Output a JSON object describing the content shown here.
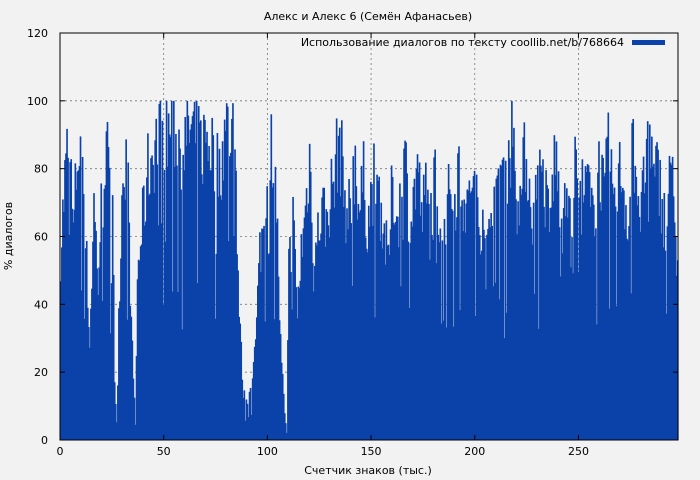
{
  "chart_data": {
    "type": "bar",
    "title": "Алекс и Алекс 6 (Семён Афанасьев)",
    "xlabel": "Счетчик знаков (тыс.)",
    "ylabel": "% диалогов",
    "legend": {
      "label": "Использование диалогов по тексту coollib.net/b/768664",
      "position": "top-right"
    },
    "color": "#0b42aa",
    "background": "#f2f2f2",
    "grid": true,
    "xlim": [
      0,
      298
    ],
    "ylim": [
      0,
      120
    ],
    "xticks": [
      "0",
      "50",
      "100",
      "150",
      "200",
      "250"
    ],
    "yticks": [
      "0",
      "20",
      "40",
      "60",
      "80",
      "100",
      "120"
    ],
    "x_step": 0.5,
    "x_start": 0,
    "envelope": [
      [
        0,
        60
      ],
      [
        2,
        82
      ],
      [
        4,
        97
      ],
      [
        6,
        65
      ],
      [
        8,
        90
      ],
      [
        10,
        96
      ],
      [
        12,
        64
      ],
      [
        14,
        30
      ],
      [
        16,
        75
      ],
      [
        18,
        50
      ],
      [
        20,
        80
      ],
      [
        22,
        95
      ],
      [
        24,
        70
      ],
      [
        25,
        85
      ],
      [
        26,
        20
      ],
      [
        27,
        5
      ],
      [
        28,
        40
      ],
      [
        30,
        88
      ],
      [
        32,
        90
      ],
      [
        33,
        65
      ],
      [
        34,
        35
      ],
      [
        36,
        5
      ],
      [
        37,
        50
      ],
      [
        38,
        60
      ],
      [
        40,
        72
      ],
      [
        42,
        85
      ],
      [
        44,
        90
      ],
      [
        46,
        95
      ],
      [
        48,
        97
      ],
      [
        50,
        99
      ],
      [
        52,
        98
      ],
      [
        54,
        99
      ],
      [
        56,
        96
      ],
      [
        58,
        92
      ],
      [
        60,
        94
      ],
      [
        62,
        99
      ],
      [
        64,
        97
      ],
      [
        66,
        95
      ],
      [
        68,
        92
      ],
      [
        70,
        96
      ],
      [
        72,
        95
      ],
      [
        74,
        90
      ],
      [
        76,
        85
      ],
      [
        78,
        92
      ],
      [
        80,
        98
      ],
      [
        82,
        99
      ],
      [
        84,
        95
      ],
      [
        86,
        40
      ],
      [
        88,
        15
      ],
      [
        90,
        10
      ],
      [
        92,
        20
      ],
      [
        94,
        30
      ],
      [
        96,
        60
      ],
      [
        98,
        68
      ],
      [
        100,
        80
      ],
      [
        102,
        95
      ],
      [
        104,
        75
      ],
      [
        106,
        30
      ],
      [
        108,
        8
      ],
      [
        109,
        2
      ],
      [
        110,
        55
      ],
      [
        112,
        70
      ],
      [
        114,
        40
      ],
      [
        116,
        60
      ],
      [
        118,
        72
      ],
      [
        120,
        90
      ],
      [
        122,
        55
      ],
      [
        124,
        65
      ],
      [
        126,
        75
      ],
      [
        128,
        68
      ],
      [
        130,
        78
      ],
      [
        132,
        82
      ],
      [
        134,
        96
      ],
      [
        136,
        85
      ],
      [
        138,
        70
      ],
      [
        140,
        75
      ],
      [
        142,
        90
      ],
      [
        144,
        72
      ],
      [
        146,
        82
      ],
      [
        148,
        68
      ],
      [
        150,
        78
      ],
      [
        152,
        88
      ],
      [
        154,
        75
      ],
      [
        156,
        65
      ],
      [
        158,
        55
      ],
      [
        160,
        82
      ],
      [
        162,
        70
      ],
      [
        164,
        75
      ],
      [
        166,
        90
      ],
      [
        168,
        70
      ],
      [
        170,
        75
      ],
      [
        172,
        88
      ],
      [
        174,
        70
      ],
      [
        176,
        78
      ],
      [
        178,
        68
      ],
      [
        180,
        85
      ],
      [
        182,
        75
      ],
      [
        184,
        65
      ],
      [
        186,
        72
      ],
      [
        188,
        80
      ],
      [
        190,
        75
      ],
      [
        192,
        88
      ],
      [
        194,
        78
      ],
      [
        196,
        70
      ],
      [
        198,
        85
      ],
      [
        200,
        75
      ],
      [
        202,
        68
      ],
      [
        204,
        75
      ],
      [
        206,
        60
      ],
      [
        208,
        80
      ],
      [
        210,
        72
      ],
      [
        212,
        88
      ],
      [
        214,
        82
      ],
      [
        216,
        90
      ],
      [
        218,
        98
      ],
      [
        220,
        85
      ],
      [
        222,
        75
      ],
      [
        224,
        92
      ],
      [
        226,
        80
      ],
      [
        228,
        70
      ],
      [
        230,
        80
      ],
      [
        232,
        85
      ],
      [
        234,
        75
      ],
      [
        236,
        68
      ],
      [
        238,
        90
      ],
      [
        240,
        80
      ],
      [
        242,
        70
      ],
      [
        244,
        88
      ],
      [
        246,
        60
      ],
      [
        248,
        85
      ],
      [
        250,
        90
      ],
      [
        252,
        75
      ],
      [
        254,
        82
      ],
      [
        256,
        70
      ],
      [
        258,
        78
      ],
      [
        260,
        88
      ],
      [
        262,
        75
      ],
      [
        264,
        90
      ],
      [
        266,
        80
      ],
      [
        268,
        72
      ],
      [
        270,
        88
      ],
      [
        272,
        76
      ],
      [
        274,
        70
      ],
      [
        276,
        95
      ],
      [
        278,
        82
      ],
      [
        280,
        70
      ],
      [
        282,
        90
      ],
      [
        284,
        95
      ],
      [
        286,
        80
      ],
      [
        288,
        85
      ],
      [
        290,
        75
      ],
      [
        292,
        65
      ],
      [
        294,
        98
      ],
      [
        296,
        60
      ],
      [
        298,
        55
      ]
    ]
  }
}
